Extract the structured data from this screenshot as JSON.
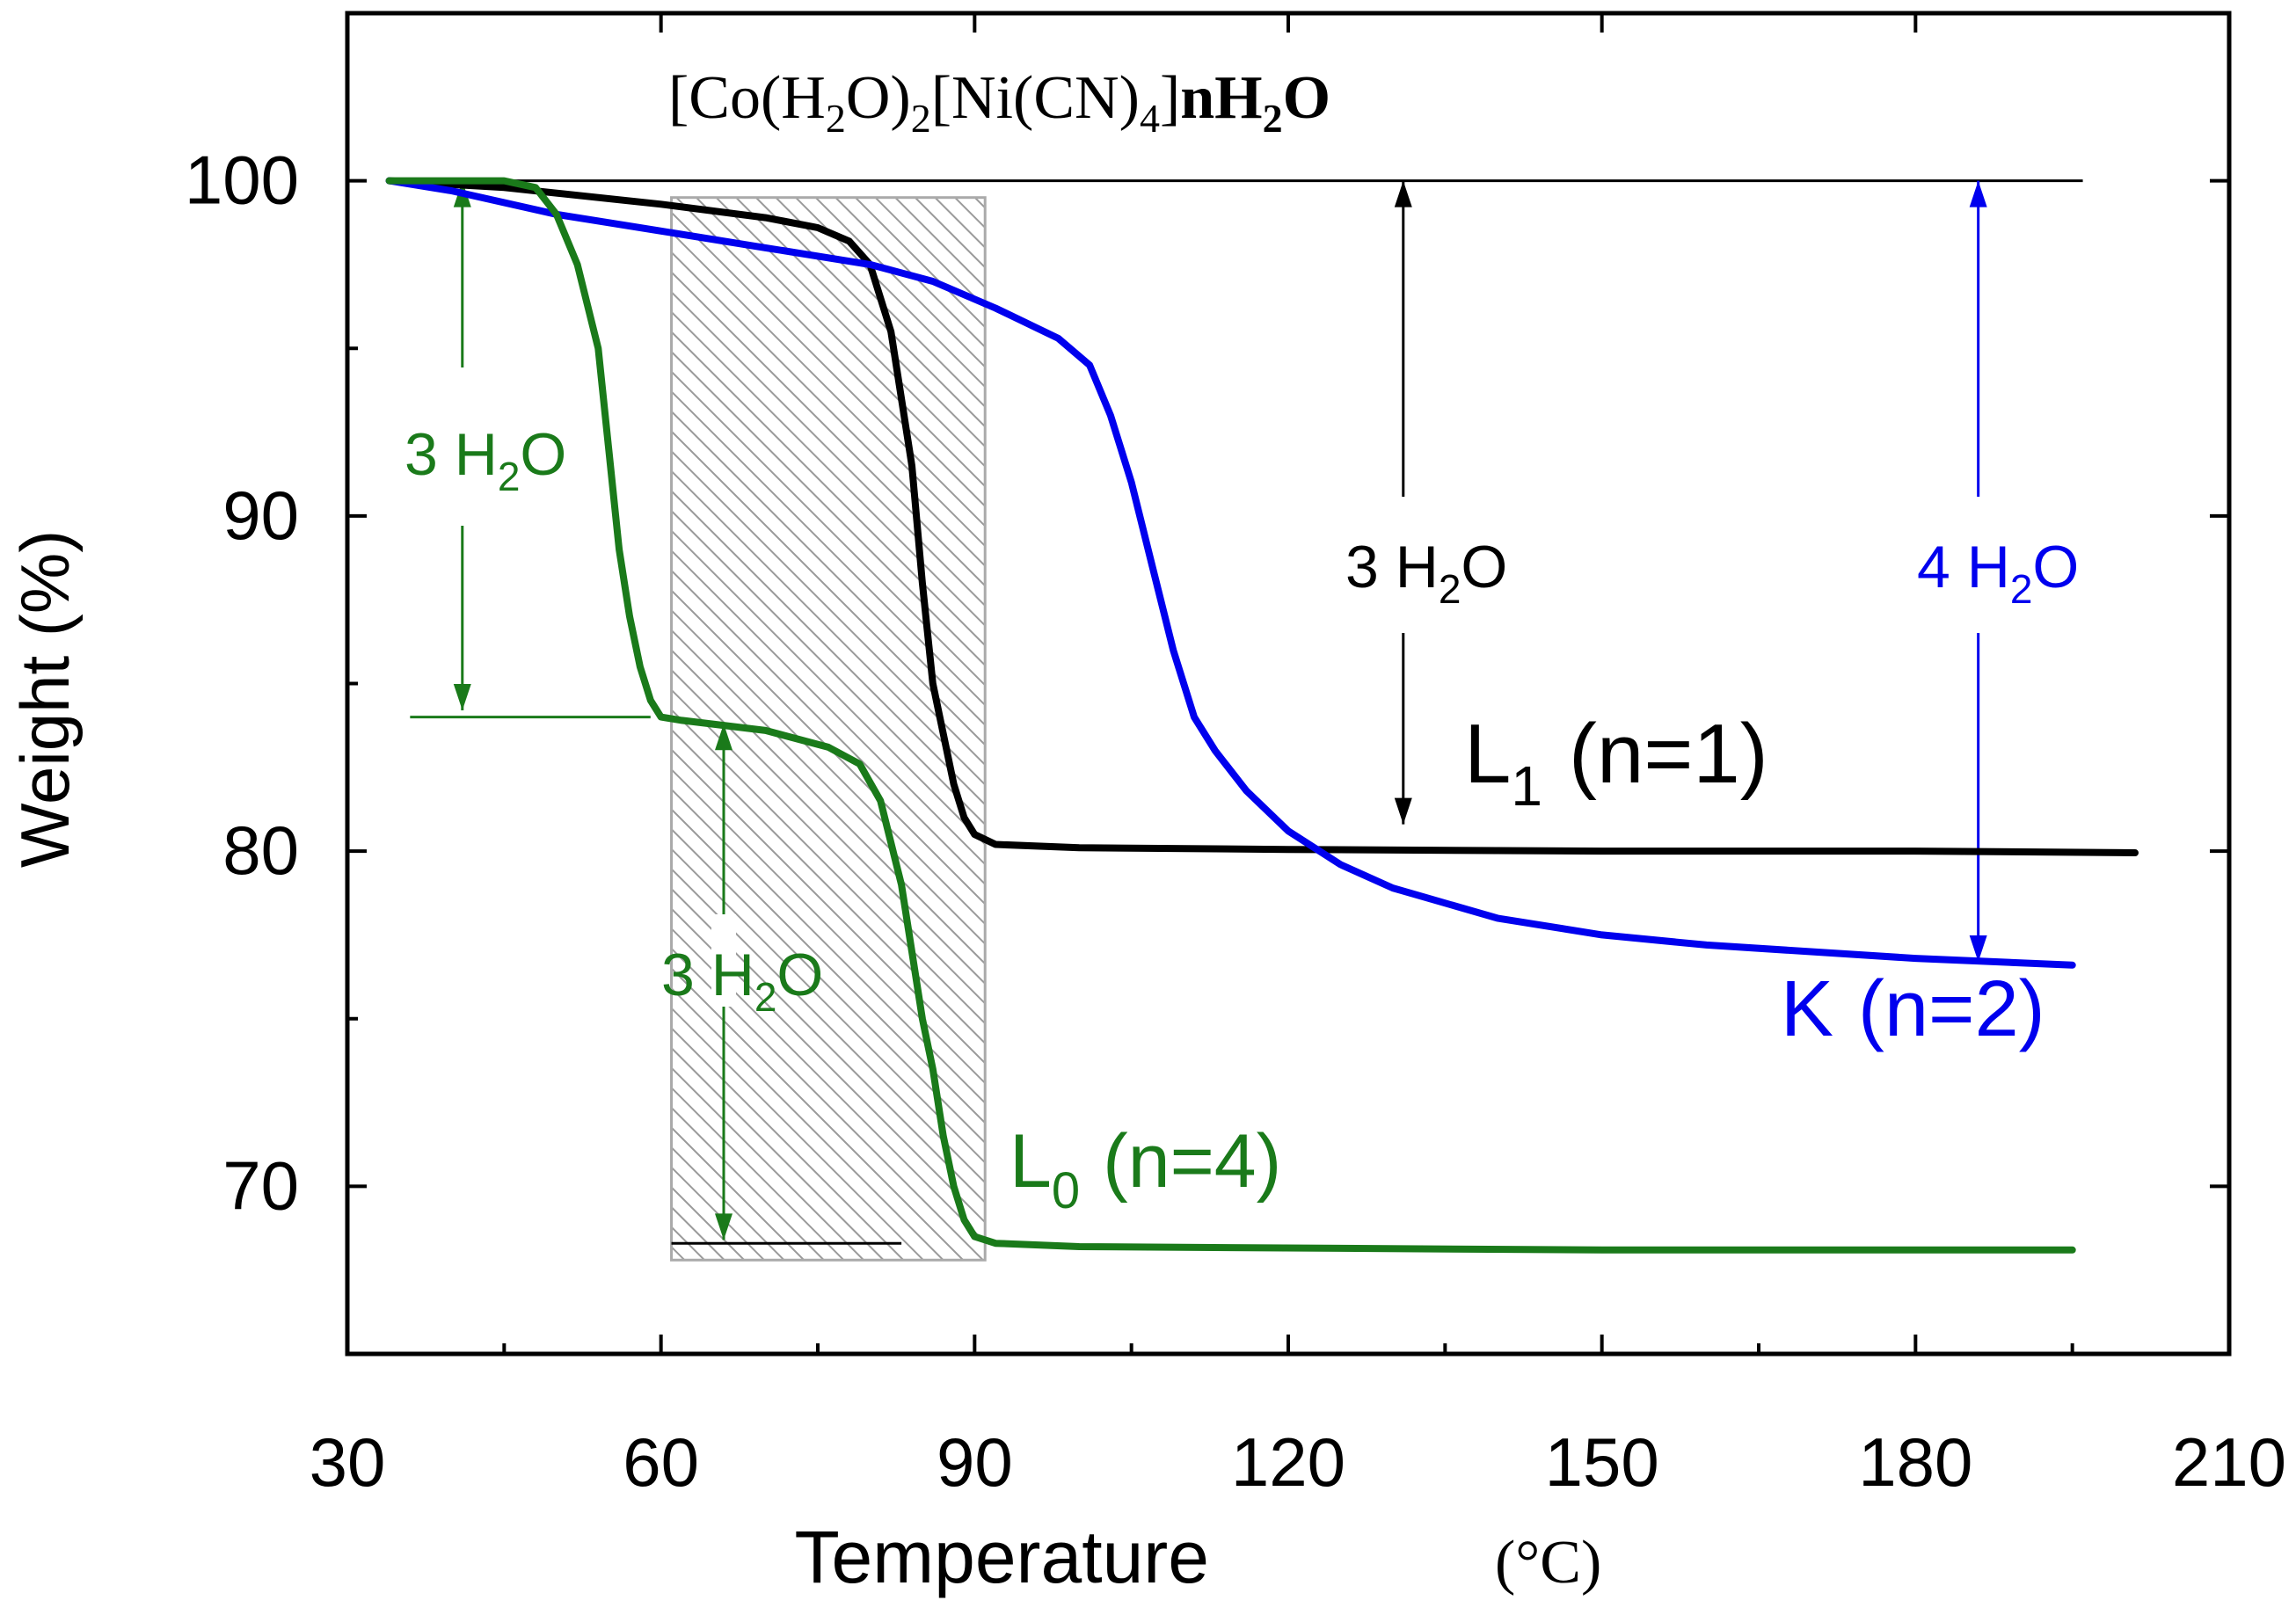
{
  "chart_data": {
    "type": "line",
    "title_parts": {
      "a": "[Co(H",
      "a_sub": "2",
      "b": "O)",
      "b_sub": "2",
      "c": "[Ni(CN)",
      "c_sub": "4",
      "d": "]",
      "e": "nH",
      "e_sub": "2",
      "f": "O"
    },
    "xlabel": "Temperature",
    "xunit": "(°C)",
    "ylabel": "Weight (%)",
    "xlim": [
      30,
      210
    ],
    "ylim": [
      65,
      105
    ],
    "xticks": [
      30,
      60,
      90,
      120,
      150,
      180,
      210
    ],
    "yticks": [
      70,
      80,
      90,
      100
    ],
    "series": [
      {
        "name": "L1",
        "label_main": "L",
        "label_sub": "1",
        "label_rest": "(n=1)",
        "color": "#000000",
        "points": [
          [
            34,
            100
          ],
          [
            45,
            99.8
          ],
          [
            60,
            99.3
          ],
          [
            70,
            98.9
          ],
          [
            75,
            98.6
          ],
          [
            78,
            98.2
          ],
          [
            80,
            97.5
          ],
          [
            82,
            95.5
          ],
          [
            84,
            91.5
          ],
          [
            85,
            88
          ],
          [
            86,
            85
          ],
          [
            87,
            83.5
          ],
          [
            88,
            82
          ],
          [
            89,
            81
          ],
          [
            90,
            80.5
          ],
          [
            92,
            80.2
          ],
          [
            100,
            80.1
          ],
          [
            120,
            80.05
          ],
          [
            150,
            80
          ],
          [
            180,
            80
          ],
          [
            201,
            79.95
          ]
        ]
      },
      {
        "name": "K",
        "label_main": "K",
        "label_rest": "(n=2)",
        "color": "#0000ee",
        "points": [
          [
            34,
            100
          ],
          [
            40,
            99.7
          ],
          [
            50,
            99
          ],
          [
            60,
            98.5
          ],
          [
            70,
            98
          ],
          [
            80,
            97.5
          ],
          [
            86,
            97
          ],
          [
            92,
            96.2
          ],
          [
            98,
            95.3
          ],
          [
            101,
            94.5
          ],
          [
            103,
            93
          ],
          [
            105,
            91
          ],
          [
            107,
            88.5
          ],
          [
            109,
            86
          ],
          [
            111,
            84
          ],
          [
            113,
            83
          ],
          [
            116,
            81.8
          ],
          [
            120,
            80.6
          ],
          [
            125,
            79.6
          ],
          [
            130,
            78.9
          ],
          [
            140,
            78
          ],
          [
            150,
            77.5
          ],
          [
            160,
            77.2
          ],
          [
            170,
            77
          ],
          [
            180,
            76.8
          ],
          [
            195,
            76.6
          ]
        ]
      },
      {
        "name": "L0",
        "label_main": "L",
        "label_sub": "0",
        "label_rest": "(n=4)",
        "color": "#1a7a1a",
        "points": [
          [
            34,
            100
          ],
          [
            45,
            100
          ],
          [
            48,
            99.8
          ],
          [
            50,
            99
          ],
          [
            52,
            97.5
          ],
          [
            54,
            95
          ],
          [
            55,
            92
          ],
          [
            56,
            89
          ],
          [
            57,
            87
          ],
          [
            58,
            85.5
          ],
          [
            59,
            84.5
          ],
          [
            60,
            84
          ],
          [
            62,
            83.9
          ],
          [
            70,
            83.6
          ],
          [
            76,
            83.1
          ],
          [
            79,
            82.6
          ],
          [
            81,
            81.5
          ],
          [
            83,
            79
          ],
          [
            84,
            77
          ],
          [
            85,
            75
          ],
          [
            86,
            73.5
          ],
          [
            87,
            71.5
          ],
          [
            88,
            70
          ],
          [
            89,
            69
          ],
          [
            90,
            68.5
          ],
          [
            92,
            68.3
          ],
          [
            100,
            68.2
          ],
          [
            150,
            68.1
          ],
          [
            195,
            68.1
          ]
        ]
      }
    ],
    "annotations": {
      "l0_upper": {
        "text": "3 H",
        "sub": "2",
        "rest": "O",
        "color": "#1a7a1a"
      },
      "l0_lower": {
        "text": "3 H",
        "sub": "2",
        "rest": "O",
        "color": "#1a7a1a"
      },
      "l1": {
        "text": "3 H",
        "sub": "2",
        "rest": "O",
        "color": "#000000"
      },
      "k": {
        "text": "4 H",
        "sub": "2",
        "rest": "O",
        "color": "#0000ee"
      }
    },
    "reference_lines": {
      "top_y": 100,
      "l0_mid_y": 84,
      "l0_end_y": 68.3
    },
    "hatched_region": {
      "x": [
        61,
        91
      ],
      "y": [
        67.8,
        99.5
      ]
    }
  }
}
